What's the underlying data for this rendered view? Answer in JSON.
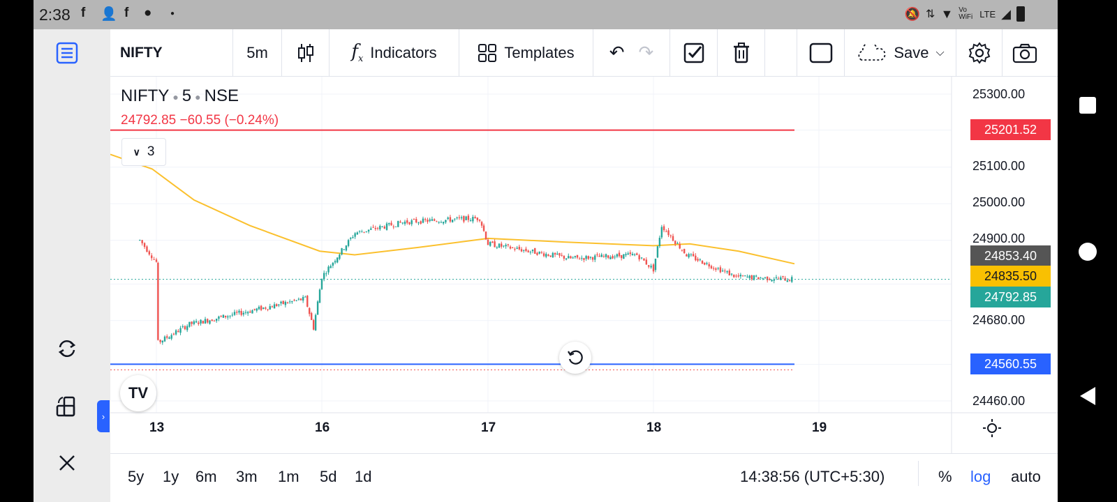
{
  "status_bar": {
    "time": "2:38",
    "network_label": "Vo WiFi",
    "lte_label": "LTE"
  },
  "toolbar": {
    "symbol": "NIFTY",
    "interval": "5m",
    "indicators_label": "Indicators",
    "templates_label": "Templates",
    "save_label": "Save"
  },
  "legend": {
    "symbol": "NIFTY",
    "interval": "5",
    "exchange": "NSE",
    "price_line": "24792.85  −60.55 (−0.24%)",
    "indicator_count": "3"
  },
  "price_axis": {
    "ticks": [
      "25300.00",
      "25100.00",
      "25000.00",
      "24900.00",
      "24680.00",
      "24460.00"
    ],
    "labels": {
      "upper_line": "25201.52",
      "high": "24853.40",
      "ma": "24835.50",
      "last": "24792.85",
      "lower_line": "24560.55"
    }
  },
  "time_axis": {
    "ticks": [
      "13",
      "16",
      "17",
      "18",
      "19"
    ]
  },
  "bottom_bar": {
    "ranges": [
      "5y",
      "1y",
      "6m",
      "3m",
      "1m",
      "5d",
      "1d"
    ],
    "clock": "14:38:56 (UTC+5:30)",
    "percent_label": "%",
    "log_label": "log",
    "auto_label": "auto"
  },
  "colors": {
    "up": "#26a69a",
    "down": "#ef5350",
    "ma": "#fbc02d",
    "upper_line": "#f23645",
    "lower_line": "#2962ff",
    "high_label_bg": "#555555",
    "last_label_bg": "#26a69a"
  },
  "chart_data": {
    "type": "candlestick",
    "symbol": "NIFTY",
    "interval": "5",
    "last_price": 24792.85,
    "change": -60.55,
    "change_pct": -0.24,
    "horizontal_lines": [
      25201.52,
      24560.55
    ],
    "ma_last": 24835.5,
    "x_ticks": [
      "13",
      "16",
      "17",
      "18",
      "19"
    ],
    "y_ticks": [
      25300,
      25100,
      25000,
      24900,
      24680,
      24460
    ],
    "price_path": [
      {
        "x": "12.9",
        "y": 24900
      },
      {
        "x": "13",
        "y": 24840
      },
      {
        "x": "13.01",
        "y": 24620
      },
      {
        "x": "13.2",
        "y": 24670
      },
      {
        "x": "13.5",
        "y": 24700
      },
      {
        "x": "13.9",
        "y": 24740
      },
      {
        "x": "13.95",
        "y": 24660
      },
      {
        "x": "16",
        "y": 24800
      },
      {
        "x": "16.2",
        "y": 24920
      },
      {
        "x": "16.5",
        "y": 24950
      },
      {
        "x": "16.95",
        "y": 24960
      },
      {
        "x": "17",
        "y": 24890
      },
      {
        "x": "17.5",
        "y": 24850
      },
      {
        "x": "17.9",
        "y": 24860
      },
      {
        "x": "18",
        "y": 24820
      },
      {
        "x": "18.05",
        "y": 24940
      },
      {
        "x": "18.2",
        "y": 24860
      },
      {
        "x": "18.5",
        "y": 24800
      },
      {
        "x": "18.85",
        "y": 24792.85
      }
    ]
  }
}
